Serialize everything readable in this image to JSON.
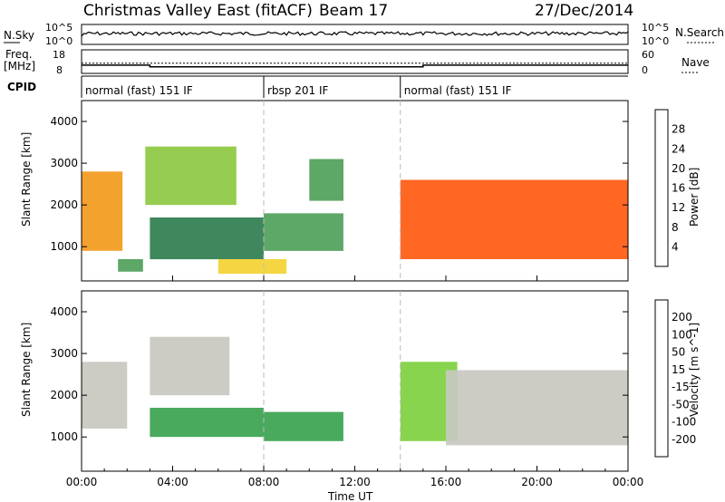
{
  "header": {
    "title_left": "Christmas Valley East (fitACF)",
    "title_mid": "Beam 17",
    "title_right": "27/Dec/2014"
  },
  "top_panels": {
    "nsky_label": "N.Sky",
    "nsky_ticks": [
      "10^5",
      "10^0"
    ],
    "nsearch_label": "N.Search",
    "freq_label_1": "Freq.",
    "freq_label_2": "[MHz]",
    "freq_ticks": [
      "18",
      "8"
    ],
    "nave_ticks": [
      "60",
      "0"
    ],
    "nave_label": "Nave",
    "cpid_label": "CPID",
    "cpid_segments": [
      {
        "label": "normal (fast) 151 IF",
        "start_hour": 0,
        "end_hour": 8
      },
      {
        "label": "rbsp 201 IF",
        "start_hour": 8,
        "end_hour": 14
      },
      {
        "label": "normal (fast) 151 IF",
        "start_hour": 14,
        "end_hour": 24
      }
    ],
    "freq_mhz_steps": [
      {
        "start_hour": 0,
        "end_hour": 3,
        "value": 11.5
      },
      {
        "start_hour": 3,
        "end_hour": 15,
        "value": 10.8
      },
      {
        "start_hour": 15,
        "end_hour": 24,
        "value": 11.5
      }
    ],
    "nave_level": 26
  },
  "chart_data": [
    {
      "type": "heatmap",
      "quantity": "Power",
      "ylabel": "Slant Range [km]",
      "ylim": [
        180,
        4500
      ],
      "yticks": [
        1000,
        2000,
        3000,
        4000
      ],
      "xlim": [
        0,
        24
      ],
      "colorbar_label": "Power [dB]",
      "colorbar_ticks": [
        "28",
        "24",
        "20",
        "16",
        "12",
        "8",
        "4"
      ],
      "colorbar_range": [
        0,
        32
      ],
      "regions": [
        {
          "t0": 0.0,
          "t1": 1.8,
          "r0": 900,
          "r1": 2800,
          "value": 24
        },
        {
          "t0": 1.6,
          "t1": 2.7,
          "r0": 400,
          "r1": 700,
          "value": 12
        },
        {
          "t0": 2.8,
          "t1": 6.8,
          "r0": 2000,
          "r1": 3400,
          "value": 16
        },
        {
          "t0": 3.0,
          "t1": 8.0,
          "r0": 700,
          "r1": 1700,
          "value": 10
        },
        {
          "t0": 6.0,
          "t1": 9.0,
          "r0": 350,
          "r1": 700,
          "value": 20
        },
        {
          "t0": 8.0,
          "t1": 11.5,
          "r0": 900,
          "r1": 1800,
          "value": 12
        },
        {
          "t0": 10.0,
          "t1": 11.5,
          "r0": 2100,
          "r1": 3100,
          "value": 14
        },
        {
          "t0": 14.0,
          "t1": 24.0,
          "r0": 700,
          "r1": 2600,
          "value": 26
        }
      ]
    },
    {
      "type": "heatmap",
      "quantity": "Velocity",
      "ylabel": "Slant Range [km]",
      "ylim": [
        180,
        4500
      ],
      "yticks": [
        1000,
        2000,
        3000,
        4000
      ],
      "xlim": [
        0,
        24
      ],
      "xlabel": "Time UT",
      "xticks": [
        "00:00",
        "04:00",
        "08:00",
        "12:00",
        "16:00",
        "20:00",
        "00:00"
      ],
      "colorbar_label": "Velocity [m s^-1]",
      "colorbar_ticks": [
        "200",
        "100",
        "50",
        "15",
        "-15",
        "-50",
        "-100",
        "-200"
      ],
      "regions": [
        {
          "t0": 0.0,
          "t1": 2.0,
          "r0": 1200,
          "r1": 2800,
          "value": 0
        },
        {
          "t0": 3.0,
          "t1": 6.5,
          "r0": 2000,
          "r1": 3400,
          "value": 0
        },
        {
          "t0": 3.0,
          "t1": 8.0,
          "r0": 1000,
          "r1": 1700,
          "value": 60
        },
        {
          "t0": 8.0,
          "t1": 11.5,
          "r0": 900,
          "r1": 1600,
          "value": 50
        },
        {
          "t0": 14.0,
          "t1": 16.5,
          "r0": 900,
          "r1": 2800,
          "value": 40
        },
        {
          "t0": 16.0,
          "t1": 24.0,
          "r0": 800,
          "r1": 2600,
          "value": 0
        }
      ]
    }
  ],
  "colors": {
    "power_scale": [
      "#0000ff",
      "#1e3ccc",
      "#2f7d4f",
      "#4fa05a",
      "#8dc840",
      "#f3d233",
      "#f39a1c",
      "#ff5a10",
      "#ff0000"
    ],
    "velocity_scale": [
      "#2030a0",
      "#2f6fb0",
      "#3aa24e",
      "#7fd03f",
      "#c8c8c0",
      "#f5b025",
      "#f07a15",
      "#ff0000"
    ]
  }
}
